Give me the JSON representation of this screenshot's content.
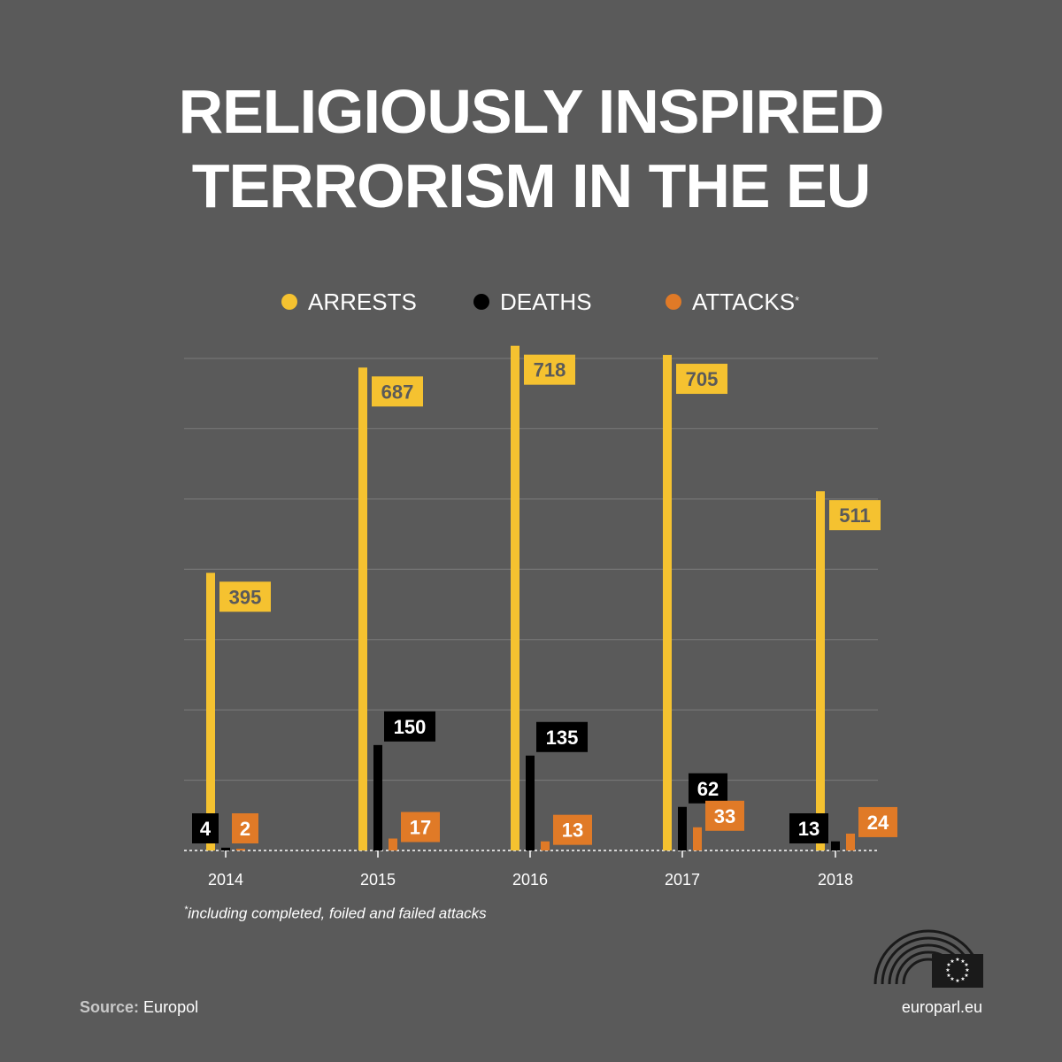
{
  "header": {
    "title_line1": "RELIGIOUSLY INSPIRED",
    "title_line2": "TERRORISM IN THE EU"
  },
  "legend": {
    "arrests": "ARRESTS",
    "deaths": "DEATHS",
    "attacks": "ATTACKS",
    "attacks_marker": "*"
  },
  "colors": {
    "background": "#5a5a5a",
    "arrests": "#f5c230",
    "deaths": "#000000",
    "attacks": "#e07a27",
    "arrests_label_text": "#5a5a5a",
    "white": "#ffffff"
  },
  "chart_data": {
    "type": "bar",
    "categories": [
      "2014",
      "2015",
      "2016",
      "2017",
      "2018"
    ],
    "series": [
      {
        "name": "ARRESTS",
        "values": [
          395,
          687,
          718,
          705,
          511
        ]
      },
      {
        "name": "DEATHS",
        "values": [
          4,
          150,
          135,
          62,
          13
        ]
      },
      {
        "name": "ATTACKS",
        "values": [
          2,
          17,
          13,
          33,
          24
        ]
      }
    ],
    "ylim": [
      0,
      700
    ],
    "grid": true,
    "legend_position": "top"
  },
  "footnote": {
    "marker": "*",
    "text": "including completed, foiled and failed attacks"
  },
  "footer": {
    "source_label": "Source:",
    "source_value": "Europol",
    "site": "europarl.eu"
  }
}
